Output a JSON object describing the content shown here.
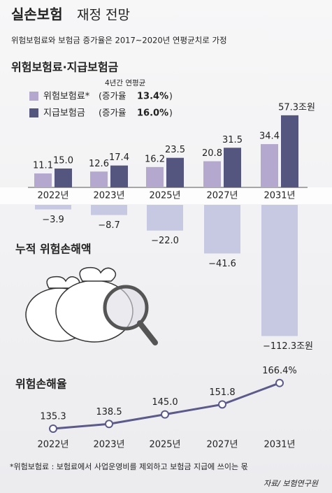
{
  "header": {
    "title": "실손보험",
    "title_rest": "재정 전망",
    "subtitle": "위험보험료와 보험금 증가율은 2017~2020년 연평균치로 가정"
  },
  "chart_data": [
    {
      "type": "bar",
      "title": "위험보험료·지급보험금",
      "legend_header": "4년간 연평균",
      "growth_label": "증가율",
      "categories": [
        "2022년",
        "2023년",
        "2025년",
        "2027년",
        "2031년"
      ],
      "series": [
        {
          "name": "위험보험료*",
          "color": "#b4a8cf",
          "growth": 13.4,
          "growth_text": "13.4%",
          "values": [
            11.1,
            12.6,
            16.2,
            20.8,
            34.4
          ]
        },
        {
          "name": "지급보험금",
          "color": "#55567f",
          "growth": 16.0,
          "growth_text": "16.0%",
          "values": [
            15.0,
            17.4,
            23.5,
            31.5,
            57.3
          ],
          "value_labels": [
            "15.0",
            "17.4",
            "23.5",
            "31.5",
            "57.3조원"
          ]
        }
      ]
    },
    {
      "type": "bar",
      "title": "누적 위험손해액",
      "color": "#c6c9e1",
      "values": [
        -3.9,
        -8.7,
        -22.0,
        -41.6,
        -112.3
      ],
      "value_labels": [
        "−3.9",
        "−8.7",
        "−22.0",
        "−41.6",
        "−112.3조원"
      ]
    },
    {
      "type": "line",
      "title": "위험손해율",
      "color": "#5b5a8a",
      "categories": [
        "2022년",
        "2023년",
        "2025년",
        "2027년",
        "2031년"
      ],
      "values": [
        135.3,
        138.5,
        145.0,
        151.8,
        166.4
      ],
      "value_labels": [
        "135.3",
        "138.5",
        "145.0",
        "151.8",
        "166.4%"
      ]
    }
  ],
  "footnote": "*위험보험료 : 보험료에서 사업운영비를 제외하고 보험금 지급에 쓰이는 몫",
  "source": "자료/ 보험연구원"
}
